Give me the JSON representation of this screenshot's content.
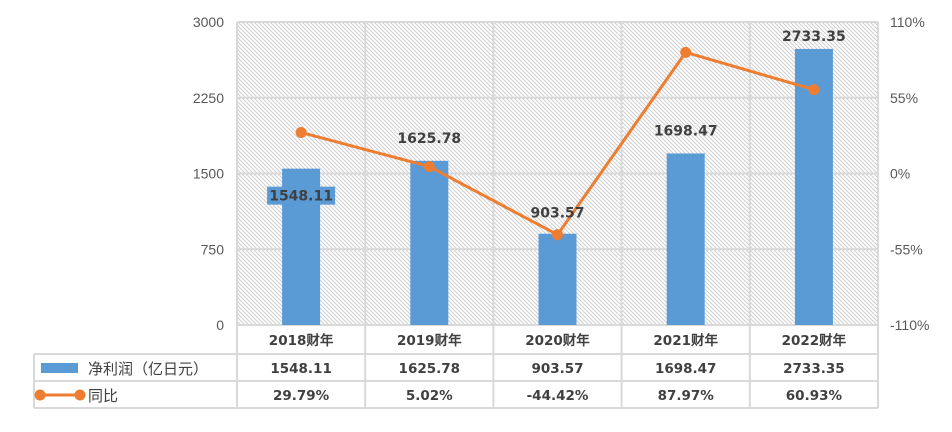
{
  "chart_data": {
    "type": "bar+line",
    "categories": [
      "2018财年",
      "2019财年",
      "2020财年",
      "2021财年",
      "2022财年"
    ],
    "series": [
      {
        "name": "净利润（亿日元）",
        "type": "bar",
        "axis": "left",
        "values": [
          1548.11,
          1625.78,
          903.57,
          1698.47,
          2733.35
        ],
        "labels": [
          "1548.11",
          "1625.78",
          "903.57",
          "1698.47",
          "2733.35"
        ]
      },
      {
        "name": "同比",
        "type": "line",
        "axis": "right",
        "values": [
          29.79,
          5.02,
          -44.42,
          87.97,
          60.93
        ],
        "labels": [
          "29.79%",
          "5.02%",
          "-44.42%",
          "87.97%",
          "60.93%"
        ]
      }
    ],
    "left_axis": {
      "ylim": [
        0,
        3000
      ],
      "ticks": [
        "0",
        "750",
        "1500",
        "2250",
        "3000"
      ]
    },
    "right_axis": {
      "ylim": [
        -110,
        110
      ],
      "ticks": [
        "-110%",
        "-55%",
        "0%",
        "55%",
        "110%"
      ]
    },
    "data_table": true,
    "colors": {
      "bar": "#5B9BD5",
      "line": "#ED7D31",
      "grid": "#D9D9D9"
    }
  }
}
